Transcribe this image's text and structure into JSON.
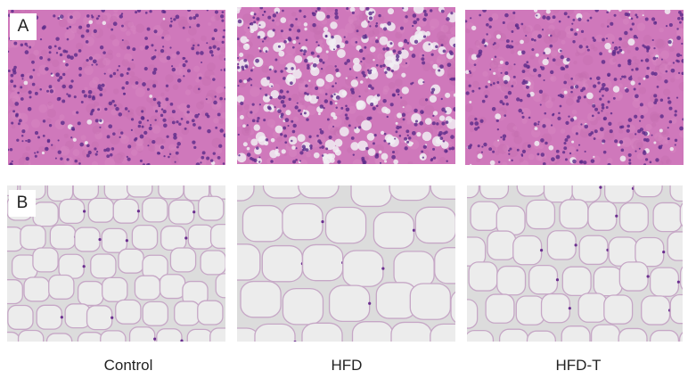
{
  "figure": {
    "row_labels": {
      "a": "A",
      "b": "B"
    },
    "captions": {
      "control": "Control",
      "hfd": "HFD",
      "hfd_t": "HFD-T"
    }
  },
  "colors": {
    "he_background_pink": "#cf78bb",
    "nuclei_purple": "#5a2a8a",
    "lipid_vacuole_white": "#f1eef3",
    "adipose_background": "#dcdcdc",
    "adipocyte_lumen": "#ececec",
    "septa_pink": "#c6a7c6",
    "nucleus_dark": "#6b2f8f"
  }
}
